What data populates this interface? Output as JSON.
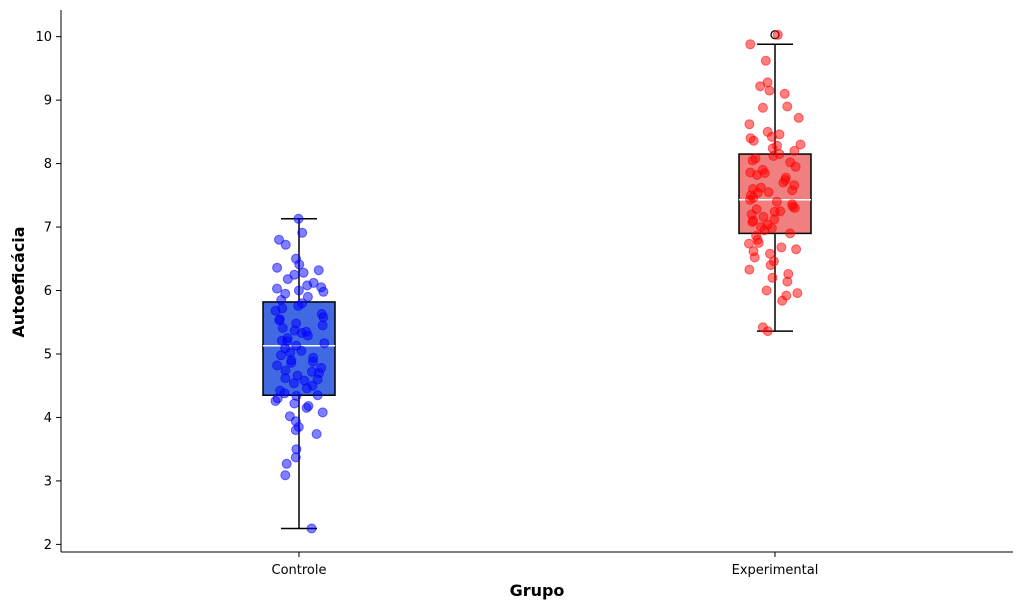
{
  "chart_data": {
    "type": "box",
    "title": "",
    "xlabel": "Grupo",
    "ylabel": "Autoeficácia",
    "ylim": [
      1.88,
      10.42
    ],
    "yticks": [
      2,
      3,
      4,
      5,
      6,
      7,
      8,
      9,
      10
    ],
    "grid": false,
    "categories": [
      "Controle",
      "Experimental"
    ],
    "series": [
      {
        "category": "Controle",
        "box_color": "#4169E1",
        "point_color": "#0000FF",
        "q1": 4.35,
        "median": 5.13,
        "q3": 5.82,
        "whisker_low": 2.25,
        "whisker_high": 7.13,
        "outliers": [],
        "points": [
          7.13,
          6.91,
          6.8,
          6.72,
          6.5,
          6.41,
          6.36,
          6.32,
          6.28,
          6.25,
          6.18,
          6.12,
          6.08,
          6.03,
          6.0,
          5.95,
          5.9,
          5.85,
          5.8,
          5.76,
          5.72,
          5.68,
          5.63,
          5.58,
          5.53,
          5.48,
          5.45,
          5.41,
          5.37,
          5.33,
          5.29,
          5.25,
          5.21,
          5.17,
          5.13,
          5.09,
          5.05,
          5.02,
          4.98,
          4.94,
          4.9,
          4.86,
          4.82,
          4.78,
          4.74,
          4.7,
          4.66,
          4.62,
          4.58,
          4.54,
          4.5,
          4.46,
          4.42,
          4.38,
          4.34,
          4.3,
          4.26,
          4.22,
          4.18,
          4.15,
          4.08,
          4.02,
          3.94,
          3.85,
          3.8,
          3.74,
          3.5,
          3.37,
          3.27,
          3.09,
          2.25,
          5.55,
          5.2,
          4.88,
          4.6,
          5.98,
          6.05,
          4.35,
          4.72,
          5.35
        ]
      },
      {
        "category": "Experimental",
        "box_color": "#F08080",
        "point_color": "#FF0000",
        "q1": 6.9,
        "median": 7.43,
        "q3": 8.15,
        "whisker_low": 5.36,
        "whisker_high": 9.88,
        "outliers": [
          10.03
        ],
        "points": [
          10.03,
          9.88,
          9.62,
          9.28,
          9.22,
          9.15,
          9.1,
          8.9,
          8.88,
          8.72,
          8.62,
          8.5,
          8.46,
          8.42,
          8.36,
          8.3,
          8.24,
          8.2,
          8.15,
          8.12,
          8.08,
          8.02,
          7.95,
          7.9,
          7.86,
          7.82,
          7.78,
          7.74,
          7.7,
          7.66,
          7.62,
          7.58,
          7.54,
          7.5,
          7.46,
          7.43,
          7.4,
          7.36,
          7.32,
          7.28,
          7.24,
          7.2,
          7.16,
          7.12,
          7.08,
          7.04,
          7.0,
          6.95,
          6.9,
          6.86,
          6.8,
          6.74,
          6.68,
          6.62,
          6.58,
          6.52,
          6.46,
          6.4,
          6.33,
          6.26,
          6.2,
          6.14,
          6.0,
          5.96,
          5.92,
          5.84,
          5.42,
          5.36,
          7.6,
          7.3,
          7.1,
          8.05,
          6.75,
          7.85,
          8.4,
          7.25,
          6.98,
          7.55,
          8.28,
          6.65
        ]
      }
    ]
  }
}
